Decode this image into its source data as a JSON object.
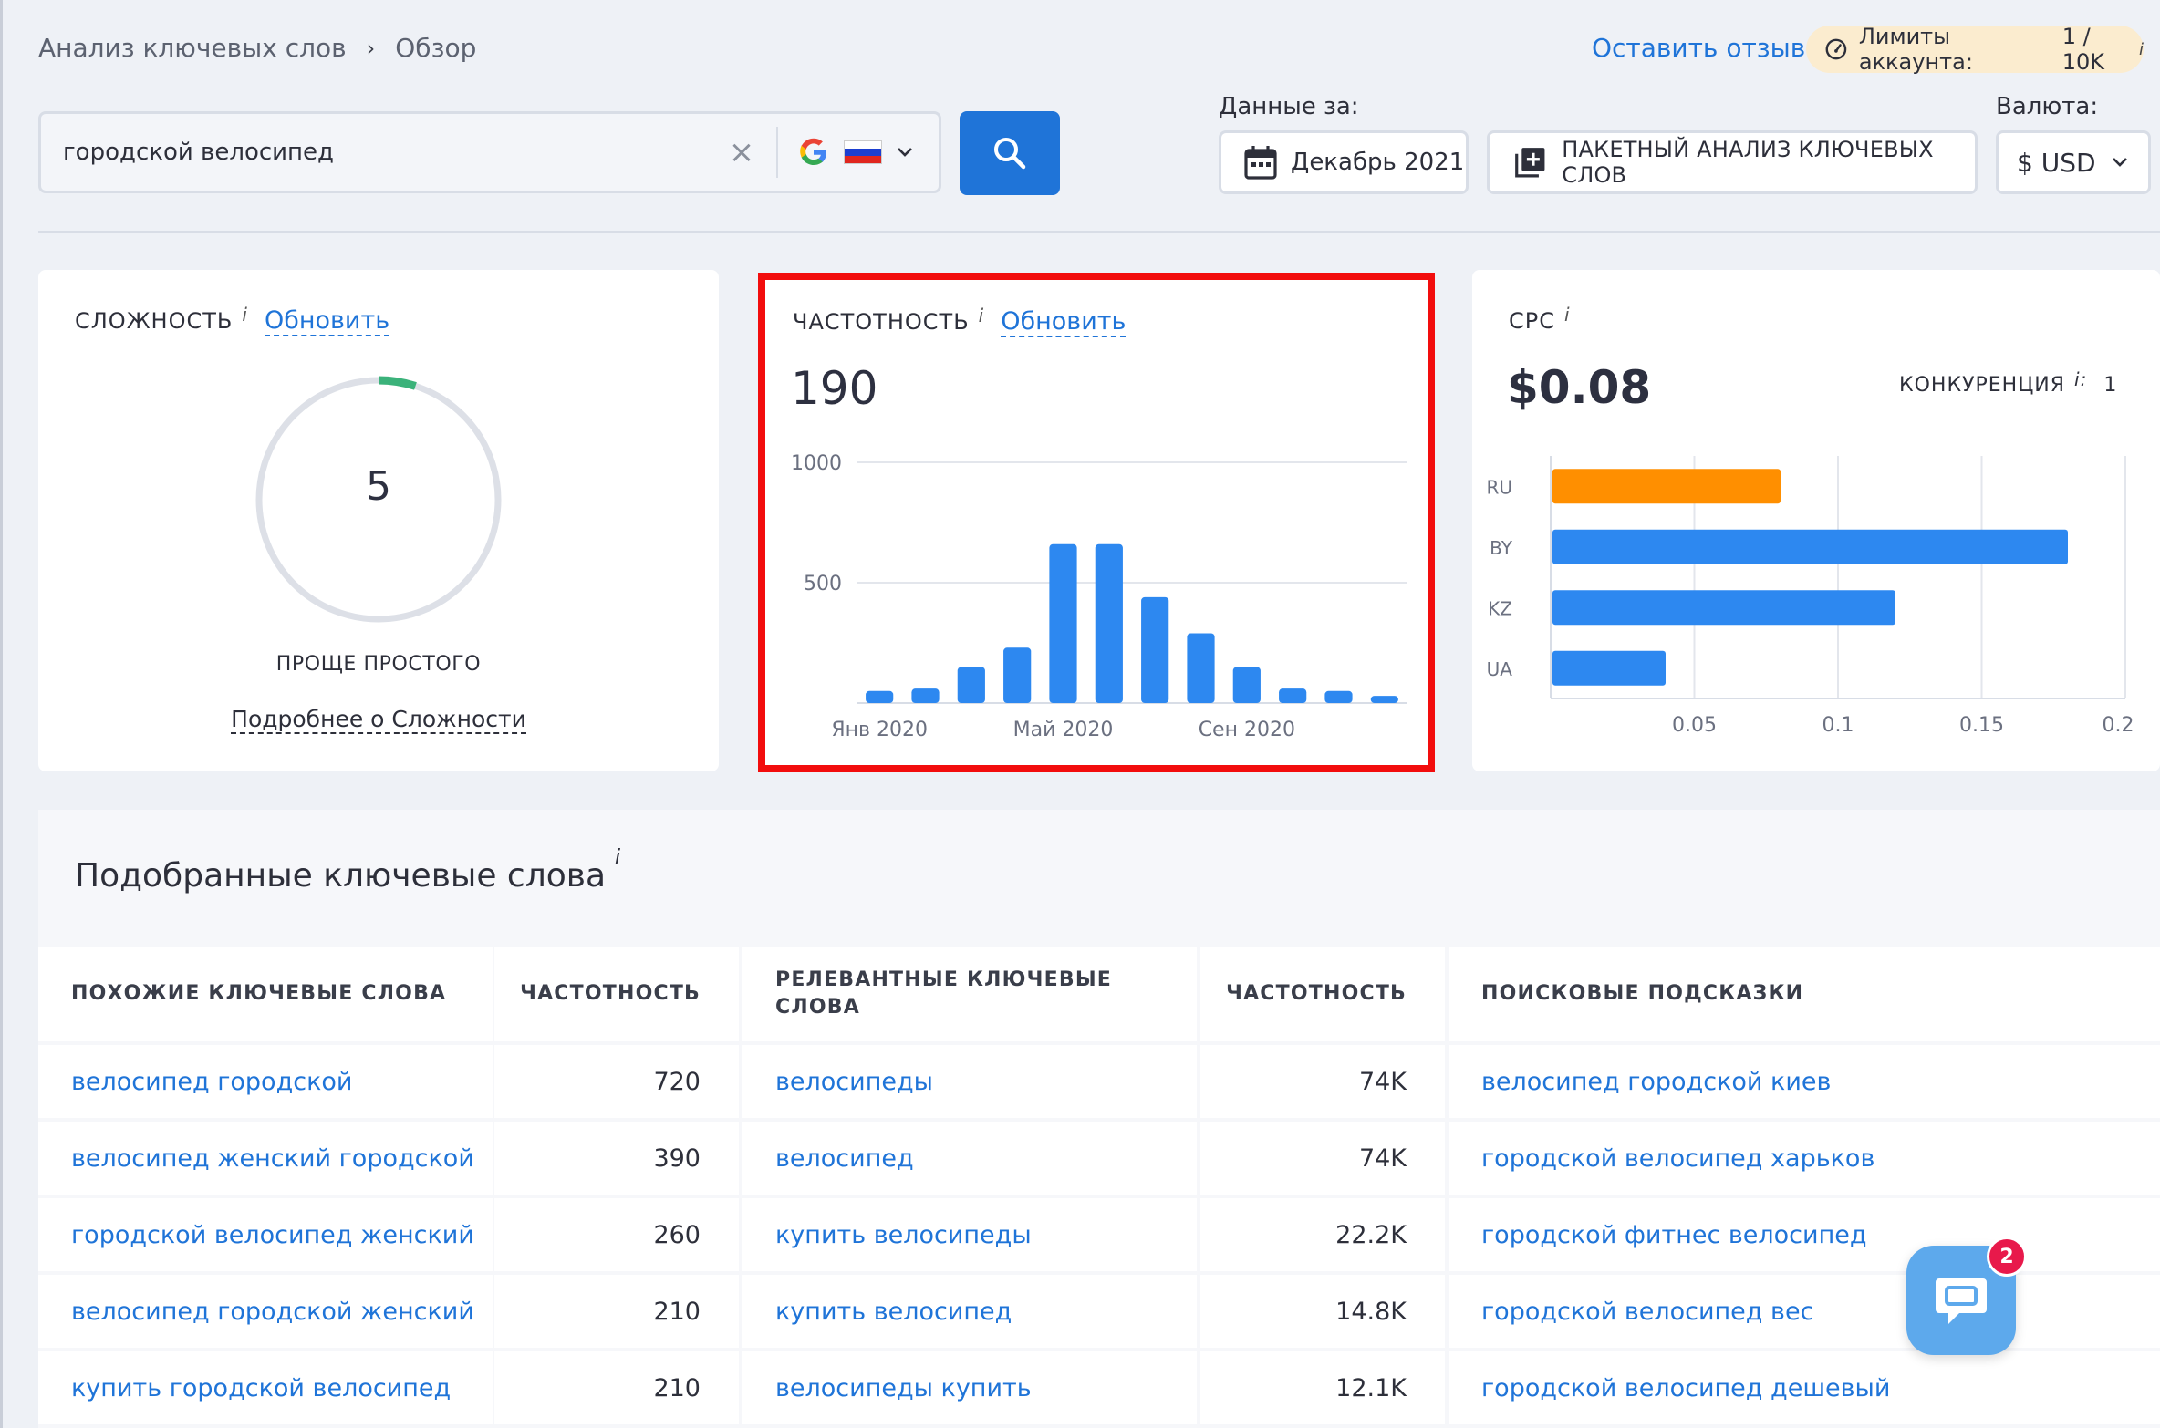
{
  "breadcrumb": {
    "root": "Анализ ключевых слов",
    "separator": "›",
    "current": "Обзор"
  },
  "header": {
    "feedback_link": "Оставить отзыв",
    "limits_label": "Лимиты аккаунта:",
    "limits_value": "1 / 10K",
    "info_mark": "i"
  },
  "search": {
    "value": "городской велосипед",
    "clear_glyph": "×",
    "engine_icon": "google-icon",
    "region_flag": "russia-flag-icon"
  },
  "filters": {
    "data_for_label": "Данные за:",
    "date_value": "Декабрь 2021",
    "batch_button": "ПАКЕТНЫЙ АНАЛИЗ КЛЮЧЕВЫХ СЛОВ",
    "currency_label": "Валюта:",
    "currency_value": "$ USD"
  },
  "difficulty": {
    "title": "СЛОЖНОСТЬ",
    "info": "i",
    "refresh": "Обновить",
    "score": "5",
    "score_fraction": 0.05,
    "verdict": "ПРОЩЕ ПРОСТОГО",
    "more_link": "Подробнее о Сложности",
    "accent": "#3bb27a"
  },
  "volume": {
    "title": "ЧАСТОТНОСТЬ",
    "info": "i",
    "refresh": "Обновить",
    "value": "190"
  },
  "cpc": {
    "title": "CPC",
    "info": "i",
    "value": "$0.08",
    "competition_label": "КОНКУРЕНЦИЯ",
    "competition_info": "i:",
    "competition_value": "1"
  },
  "chart_data": [
    {
      "type": "bar",
      "ylim": [
        0,
        1000
      ],
      "y_ticks": [
        "1000",
        "500"
      ],
      "x_tick_labels": [
        "Янв 2020",
        "Май 2020",
        "Сен 2020"
      ],
      "x_tick_positions": [
        0,
        4,
        8
      ],
      "values": [
        50,
        60,
        150,
        230,
        660,
        660,
        440,
        290,
        150,
        60,
        50,
        30
      ],
      "color": "#2d88f0"
    },
    {
      "type": "bar",
      "orientation": "horizontal",
      "categories": [
        "RU",
        "BY",
        "KZ",
        "UA"
      ],
      "values": [
        0.08,
        0.18,
        0.12,
        0.04
      ],
      "colors": [
        "#ff8f00",
        "#2d88f0",
        "#2d88f0",
        "#2d88f0"
      ],
      "xlim": [
        0,
        0.2
      ],
      "x_ticks": [
        "0.05",
        "0.1",
        "0.15",
        "0.2"
      ]
    }
  ],
  "keywords": {
    "title": "Подобранные ключевые слова",
    "info": "i",
    "headers": [
      "ПОХОЖИЕ КЛЮЧЕВЫЕ СЛОВА",
      "ЧАСТОТНОСТЬ",
      "РЕЛЕВАНТНЫЕ КЛЮЧЕВЫЕ СЛОВА",
      "ЧАСТОТНОСТЬ",
      "ПОИСКОВЫЕ ПОДСКАЗКИ"
    ],
    "rows": [
      {
        "similar": "велосипед городской",
        "similar_vol": "720",
        "relevant": "велосипеды",
        "relevant_vol": "74K",
        "suggest": "велосипед городской киев"
      },
      {
        "similar": "велосипед женский городской",
        "similar_vol": "390",
        "relevant": "велосипед",
        "relevant_vol": "74K",
        "suggest": "городской велосипед харьков"
      },
      {
        "similar": "городской велосипед женский",
        "similar_vol": "260",
        "relevant": "купить велосипеды",
        "relevant_vol": "22.2K",
        "suggest": "городской фитнес велосипед"
      },
      {
        "similar": "велосипед городской женский",
        "similar_vol": "210",
        "relevant": "купить велосипед",
        "relevant_vol": "14.8K",
        "suggest": "городской велосипед вес"
      },
      {
        "similar": "купить городской велосипед",
        "similar_vol": "210",
        "relevant": "велосипеды купить",
        "relevant_vol": "12.1K",
        "suggest": "городской велосипед дешевый"
      }
    ]
  },
  "chat": {
    "badge": "2",
    "icon": "chat-bubble-icon"
  }
}
